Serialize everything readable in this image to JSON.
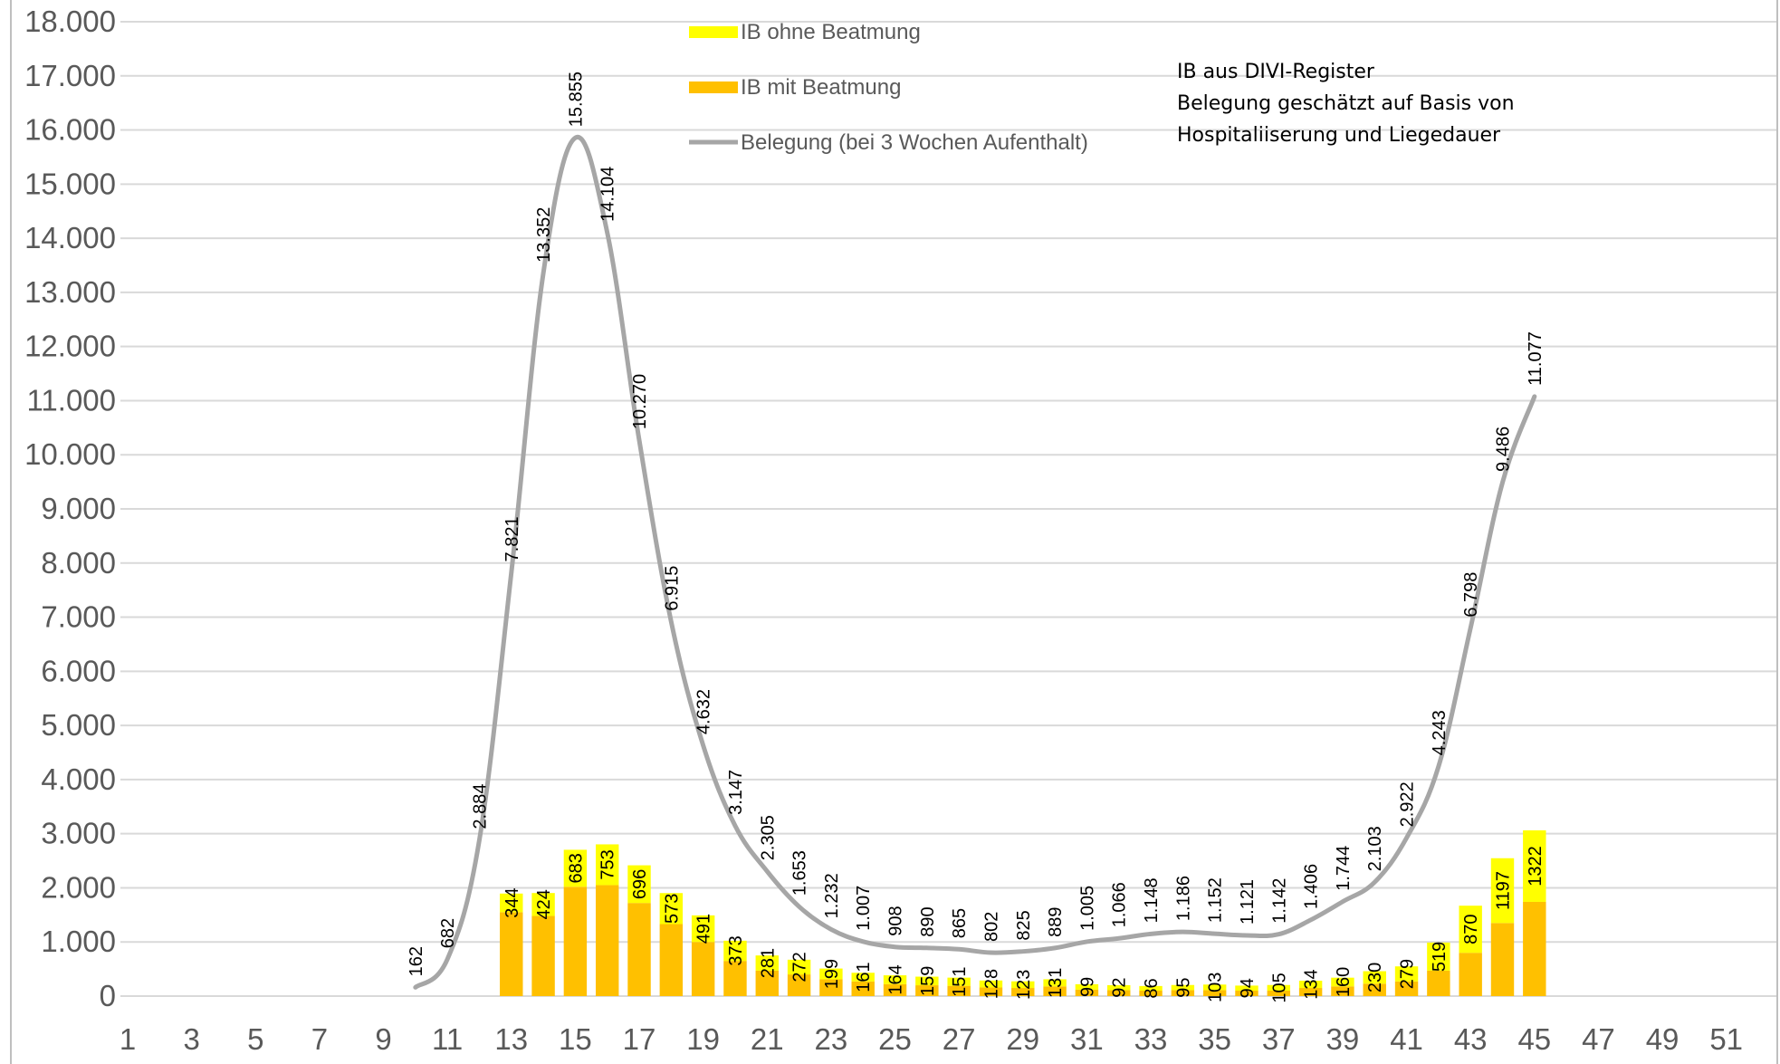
{
  "chart_data": {
    "type": "bar",
    "title": "",
    "xlabel": "",
    "ylabel": "",
    "ylim": [
      0,
      18000
    ],
    "y_ticks": [
      "0",
      "1.000",
      "2.000",
      "3.000",
      "4.000",
      "5.000",
      "6.000",
      "7.000",
      "8.000",
      "9.000",
      "10.000",
      "11.000",
      "12.000",
      "13.000",
      "14.000",
      "15.000",
      "16.000",
      "17.000",
      "18.000"
    ],
    "x_range": [
      1,
      52
    ],
    "x_tick_labels": [
      "1",
      "3",
      "5",
      "7",
      "9",
      "11",
      "13",
      "15",
      "17",
      "19",
      "21",
      "23",
      "25",
      "27",
      "29",
      "31",
      "33",
      "35",
      "37",
      "39",
      "41",
      "43",
      "45",
      "47",
      "49",
      "51"
    ],
    "grid": "horizontal",
    "legend_position": "top-center",
    "annotations": [
      "IB aus DIVI-Register",
      "Belegung geschätzt auf Basis von",
      "Hospitaliiserung und Liegedauer"
    ],
    "series": [
      {
        "name": "IB ohne Beatmung",
        "type": "stacked-bar",
        "color": "#FFFF00",
        "weeks": [
          13,
          14,
          15,
          16,
          17,
          18,
          19,
          20,
          21,
          22,
          23,
          24,
          25,
          26,
          27,
          28,
          29,
          30,
          31,
          32,
          33,
          34,
          35,
          36,
          37,
          38,
          39,
          40,
          41,
          42,
          43,
          44,
          45
        ],
        "values": [
          344,
          424,
          683,
          753,
          696,
          573,
          491,
          373,
          281,
          272,
          199,
          161,
          164,
          159,
          151,
          128,
          123,
          131,
          99,
          92,
          86,
          95,
          103,
          94,
          105,
          134,
          160,
          230,
          279,
          519,
          870,
          1197,
          1322
        ],
        "labels": [
          "344",
          "424",
          "683",
          "753",
          "696",
          "573",
          "491",
          "373",
          "281",
          "272",
          "199",
          "161",
          "164",
          "159",
          "151",
          "128",
          "123",
          "131",
          "99",
          "92",
          "86",
          "95",
          "103",
          "94",
          "105",
          "134",
          "160",
          "230",
          "279",
          "519",
          "870",
          "1197",
          "1322"
        ]
      },
      {
        "name": "IB mit Beatmung",
        "type": "stacked-bar",
        "color": "#FFC000",
        "weeks": [
          13,
          14,
          15,
          16,
          17,
          18,
          19,
          20,
          21,
          22,
          23,
          24,
          25,
          26,
          27,
          28,
          29,
          30,
          31,
          32,
          33,
          34,
          35,
          36,
          37,
          38,
          39,
          40,
          41,
          42,
          43,
          44,
          45
        ],
        "values": [
          1550,
          1480,
          2020,
          2050,
          1720,
          1330,
          1000,
          650,
          470,
          400,
          310,
          270,
          220,
          200,
          190,
          160,
          150,
          180,
          120,
          110,
          100,
          110,
          110,
          100,
          100,
          150,
          180,
          230,
          270,
          470,
          800,
          1350,
          1740
        ]
      },
      {
        "name": "Belegung (bei 3 Wochen Aufenthalt)",
        "type": "line",
        "color": "#A6A6A6",
        "weeks": [
          10,
          11,
          12,
          13,
          14,
          15,
          16,
          17,
          18,
          19,
          20,
          21,
          22,
          23,
          24,
          25,
          26,
          27,
          28,
          29,
          30,
          31,
          32,
          33,
          34,
          35,
          36,
          37,
          38,
          39,
          40,
          41,
          42,
          43,
          44,
          45
        ],
        "values": [
          162,
          682,
          2884,
          7821,
          13352,
          15855,
          14104,
          10270,
          6915,
          4632,
          3147,
          2305,
          1653,
          1232,
          1007,
          908,
          890,
          865,
          802,
          825,
          889,
          1005,
          1066,
          1148,
          1186,
          1152,
          1121,
          1142,
          1406,
          1744,
          2103,
          2922,
          4243,
          6798,
          9486,
          11077
        ],
        "labels": [
          "162",
          "682",
          "2.884",
          "7.821",
          "13.352",
          "15.855",
          "14.104",
          "10.270",
          "6.915",
          "4.632",
          "3.147",
          "2.305",
          "1.653",
          "1.232",
          "1.007",
          "908",
          "890",
          "865",
          "802",
          "825",
          "889",
          "1.005",
          "1.066",
          "1.148",
          "1.186",
          "1.152",
          "1.121",
          "1.142",
          "1.406",
          "1.744",
          "2.103",
          "2.922",
          "4.243",
          "6.798",
          "9.486",
          "11.077"
        ]
      }
    ]
  }
}
